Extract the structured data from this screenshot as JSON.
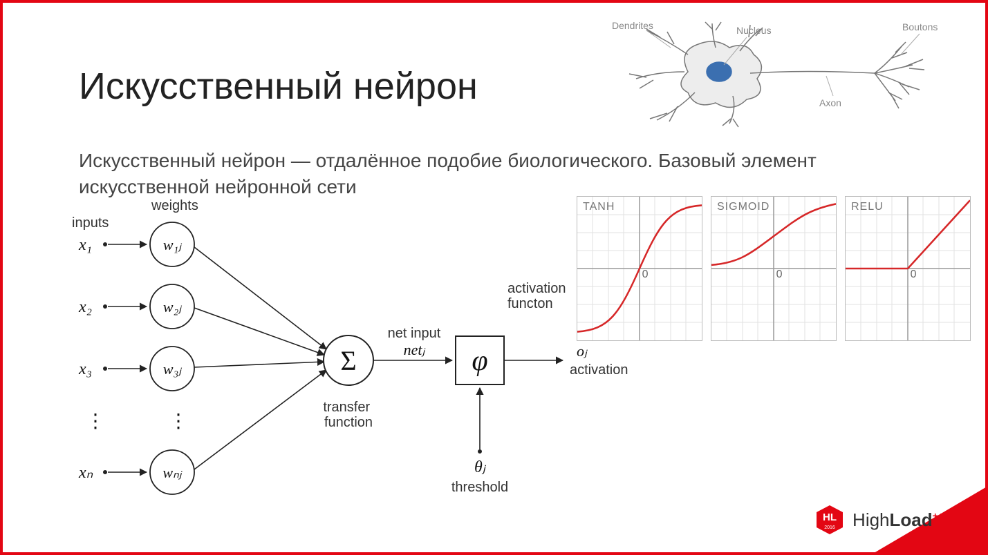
{
  "title": "Искусственный нейрон",
  "description": "Искусственный нейрон — отдалённое подобие биологического. Базовый элемент искусственной нейронной сети",
  "colors": {
    "accent": "#e30613",
    "text": "#222222",
    "subtext": "#555555",
    "grid": "#d9d9d9",
    "axis": "#888888",
    "curve": "#d62728",
    "diagram_stroke": "#222222",
    "neuron_fill": "#e8e8e8",
    "neuron_nucleus": "#3b6fb0"
  },
  "bio_neuron": {
    "labels": {
      "dendrites": "Dendrites",
      "nucleus": "Nucleus",
      "axon": "Axon",
      "boutons": "Boutons"
    }
  },
  "perceptron": {
    "labels": {
      "inputs": "inputs",
      "weights": "weights",
      "transfer_function": "transfer function",
      "net_input": "net input",
      "net_j": "netⱼ",
      "activation_function": "activation functon",
      "activation": "activation",
      "threshold": "threshold",
      "theta_j": "θⱼ",
      "o_j": "oⱼ",
      "sigma": "Σ",
      "phi": "φ"
    },
    "inputs": [
      "x₁",
      "x₂",
      "x₃",
      "xₙ"
    ],
    "weights": [
      "w₁ⱼ",
      "w₂ⱼ",
      "w₃ⱼ",
      "wₙⱼ"
    ],
    "ellipsis": "⋮"
  },
  "activations": [
    {
      "name": "TANH",
      "type": "tanh",
      "zero_label": "0"
    },
    {
      "name": "SIGMOID",
      "type": "sigmoid",
      "zero_label": "0"
    },
    {
      "name": "RELU",
      "type": "relu",
      "zero_label": "0"
    }
  ],
  "footer": {
    "brand_hl": "HL",
    "brand_year": "2016",
    "brand_text_1": "High",
    "brand_text_2": "Load",
    "brand_plus": "++"
  }
}
